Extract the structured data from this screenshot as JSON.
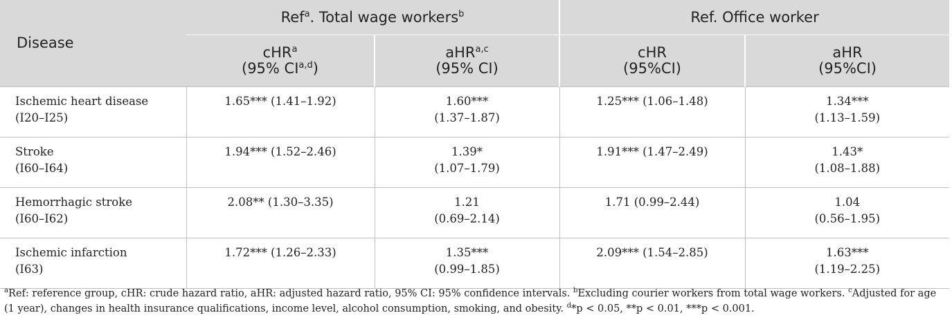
{
  "table": {
    "header": {
      "disease": "Disease",
      "group1": {
        "prefix": "Ref",
        "prefix_sup": "a",
        "label": ". Total wage workers",
        "sup": "b"
      },
      "group2": {
        "label": "Ref. Office worker"
      },
      "sub": [
        {
          "l1": "cHR",
          "l1_sup": "a",
          "l2": "(95% CI",
          "l2_sup": "a,d",
          "l2_end": ")"
        },
        {
          "l1": "aHR",
          "l1_sup": "a,c",
          "l2": "(95% CI)"
        },
        {
          "l1": "cHR",
          "l2": "(95%CI)"
        },
        {
          "l1": "aHR",
          "l2": "(95%CI)"
        }
      ]
    },
    "rows": [
      {
        "disease": "Ischemic heart disease",
        "code": "(I20–I25)",
        "chr1": "1.65*** (1.41–1.92)",
        "ahr1_val": "1.60***",
        "ahr1_ci": "(1.37–1.87)",
        "chr2": "1.25*** (1.06–1.48)",
        "ahr2_val": "1.34***",
        "ahr2_ci": "(1.13–1.59)"
      },
      {
        "disease": "Stroke",
        "code": "(I60–I64)",
        "chr1": "1.94*** (1.52–2.46)",
        "ahr1_val": "1.39*",
        "ahr1_ci": "(1.07–1.79)",
        "chr2": "1.91*** (1.47–2.49)",
        "ahr2_val": "1.43*",
        "ahr2_ci": "(1.08–1.88)"
      },
      {
        "disease": "Hemorrhagic stroke",
        "code": "(I60–I62)",
        "chr1": "2.08** (1.30–3.35)",
        "ahr1_val": "1.21",
        "ahr1_ci": "(0.69–2.14)",
        "chr2": "1.71 (0.99–2.44)",
        "ahr2_val": "1.04",
        "ahr2_ci": "(0.56–1.95)"
      },
      {
        "disease": "Ischemic infarction",
        "code": "(I63)",
        "chr1": "1.72*** (1.26–2.33)",
        "ahr1_val": "1.35***",
        "ahr1_ci": "(0.99–1.85)",
        "chr2": "2.09*** (1.54–2.85)",
        "ahr2_val": "1.63***",
        "ahr2_ci": "(1.19–2.25)"
      }
    ]
  },
  "footnote": {
    "a_sup": "a",
    "a_text": "Ref: reference group, cHR: crude hazard ratio, aHR: adjusted hazard ratio, 95% CI: 95% confidence intervals. ",
    "b_sup": "b",
    "b_text": "Excluding courier workers from total wage workers. ",
    "c_sup": "c",
    "c_text": "Adjusted for age (1 year), changes in health insurance qualifications, income level, alcohol consumption, smoking, and obesity. ",
    "d_sup": "d",
    "d_text": "*p < 0.05, **p < 0.01, ***p < 0.001."
  }
}
